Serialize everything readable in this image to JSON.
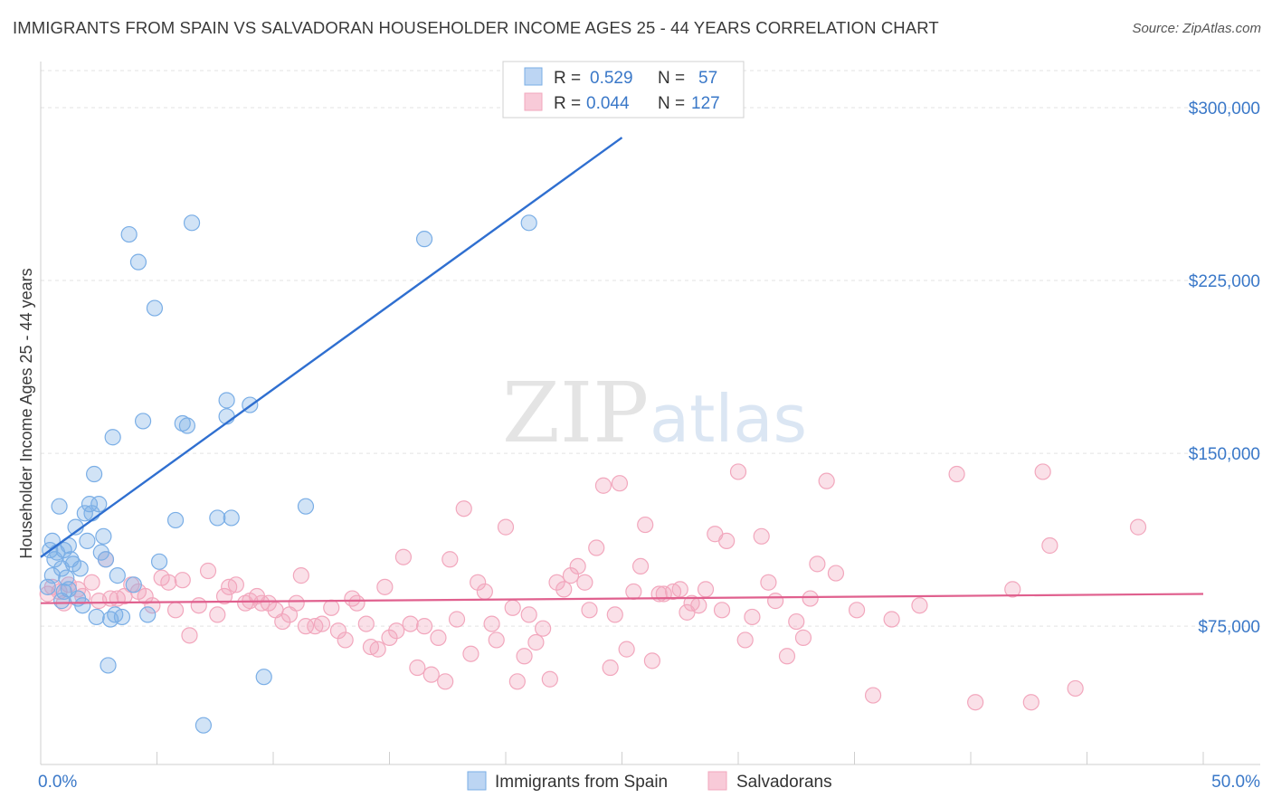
{
  "title": "IMMIGRANTS FROM SPAIN VS SALVADORAN HOUSEHOLDER INCOME AGES 25 - 44 YEARS CORRELATION CHART",
  "source": "Source: ZipAtlas.com",
  "watermark": {
    "zip": "ZIP",
    "atlas": "atlas"
  },
  "chart_data": {
    "type": "scatter",
    "ylabel": "Householder Income Ages 25 - 44 years",
    "xlim": [
      0,
      50
    ],
    "ylim": [
      15000,
      320000
    ],
    "x_tick_labels": {
      "min": "0.0%",
      "max": "50.0%"
    },
    "y_ticks": [
      {
        "value": 75000,
        "label": "$75,000"
      },
      {
        "value": 150000,
        "label": "$150,000"
      },
      {
        "value": 225000,
        "label": "$225,000"
      },
      {
        "value": 300000,
        "label": "$300,000"
      }
    ],
    "grid": true,
    "legend_position": "top-center",
    "series": [
      {
        "name": "Immigrants from Spain",
        "color": "#7aaee6",
        "line_color": "#2f6fd0",
        "R": "0.529",
        "N": "57",
        "trend": [
          [
            0.0,
            105000
          ],
          [
            25.0,
            287000
          ]
        ],
        "points": [
          [
            0.3,
            92000
          ],
          [
            0.4,
            108000
          ],
          [
            0.5,
            112000
          ],
          [
            0.6,
            104000
          ],
          [
            0.7,
            107000
          ],
          [
            0.8,
            127000
          ],
          [
            0.9,
            100000
          ],
          [
            1.0,
            90000
          ],
          [
            1.1,
            96000
          ],
          [
            1.2,
            110000
          ],
          [
            1.3,
            104000
          ],
          [
            1.4,
            102000
          ],
          [
            1.5,
            118000
          ],
          [
            1.6,
            87000
          ],
          [
            1.7,
            100000
          ],
          [
            1.8,
            84000
          ],
          [
            1.9,
            124000
          ],
          [
            2.0,
            112000
          ],
          [
            2.1,
            128000
          ],
          [
            2.2,
            124000
          ],
          [
            2.3,
            141000
          ],
          [
            2.4,
            79000
          ],
          [
            2.5,
            128000
          ],
          [
            2.7,
            114000
          ],
          [
            2.8,
            104000
          ],
          [
            3.0,
            78000
          ],
          [
            3.1,
            157000
          ],
          [
            3.2,
            80000
          ],
          [
            3.3,
            97000
          ],
          [
            3.5,
            79000
          ],
          [
            2.9,
            58000
          ],
          [
            4.0,
            93000
          ],
          [
            4.2,
            233000
          ],
          [
            4.4,
            164000
          ],
          [
            4.6,
            80000
          ],
          [
            4.9,
            213000
          ],
          [
            5.1,
            103000
          ],
          [
            3.8,
            245000
          ],
          [
            5.8,
            121000
          ],
          [
            6.1,
            163000
          ],
          [
            6.3,
            162000
          ],
          [
            6.5,
            250000
          ],
          [
            7.0,
            32000
          ],
          [
            7.6,
            122000
          ],
          [
            8.0,
            166000
          ],
          [
            8.0,
            173000
          ],
          [
            8.2,
            122000
          ],
          [
            9.0,
            171000
          ],
          [
            9.6,
            53000
          ],
          [
            1.2,
            91000
          ],
          [
            0.9,
            86000
          ],
          [
            11.4,
            127000
          ],
          [
            16.5,
            243000
          ],
          [
            21.0,
            250000
          ],
          [
            0.5,
            97000
          ],
          [
            1.0,
            108000
          ],
          [
            2.6,
            107000
          ]
        ]
      },
      {
        "name": "Salvadorans",
        "color": "#f2a7bd",
        "line_color": "#e0608e",
        "R": "0.044",
        "N": "127",
        "trend": [
          [
            0.0,
            85000
          ],
          [
            50.0,
            89000
          ]
        ],
        "points": [
          [
            0.3,
            89000
          ],
          [
            0.5,
            92000
          ],
          [
            0.8,
            90000
          ],
          [
            1.0,
            85000
          ],
          [
            1.2,
            93000
          ],
          [
            1.6,
            91000
          ],
          [
            1.8,
            88000
          ],
          [
            2.2,
            94000
          ],
          [
            2.5,
            86000
          ],
          [
            2.8,
            104000
          ],
          [
            3.0,
            87000
          ],
          [
            3.3,
            87000
          ],
          [
            3.6,
            88000
          ],
          [
            3.9,
            93000
          ],
          [
            4.2,
            90000
          ],
          [
            4.5,
            88000
          ],
          [
            4.8,
            84000
          ],
          [
            5.2,
            96000
          ],
          [
            5.5,
            94000
          ],
          [
            5.8,
            82000
          ],
          [
            6.1,
            95000
          ],
          [
            6.4,
            71000
          ],
          [
            6.8,
            84000
          ],
          [
            7.2,
            99000
          ],
          [
            7.6,
            80000
          ],
          [
            7.9,
            88000
          ],
          [
            8.1,
            92000
          ],
          [
            8.4,
            93000
          ],
          [
            8.8,
            85000
          ],
          [
            9.0,
            86000
          ],
          [
            9.3,
            88000
          ],
          [
            9.5,
            85000
          ],
          [
            9.8,
            85000
          ],
          [
            10.1,
            82000
          ],
          [
            10.4,
            77000
          ],
          [
            10.7,
            80000
          ],
          [
            11.0,
            85000
          ],
          [
            11.2,
            97000
          ],
          [
            11.4,
            75000
          ],
          [
            11.8,
            75000
          ],
          [
            12.1,
            76000
          ],
          [
            12.5,
            83000
          ],
          [
            12.8,
            73000
          ],
          [
            13.1,
            69000
          ],
          [
            13.4,
            87000
          ],
          [
            13.6,
            85000
          ],
          [
            14.0,
            76000
          ],
          [
            14.2,
            66000
          ],
          [
            14.5,
            65000
          ],
          [
            14.8,
            92000
          ],
          [
            15.0,
            70000
          ],
          [
            15.3,
            73000
          ],
          [
            15.6,
            105000
          ],
          [
            15.9,
            76000
          ],
          [
            16.2,
            57000
          ],
          [
            16.5,
            75000
          ],
          [
            16.8,
            54000
          ],
          [
            17.1,
            70000
          ],
          [
            17.4,
            51000
          ],
          [
            17.6,
            104000
          ],
          [
            17.9,
            78000
          ],
          [
            18.2,
            126000
          ],
          [
            18.5,
            63000
          ],
          [
            18.8,
            94000
          ],
          [
            19.1,
            90000
          ],
          [
            19.4,
            76000
          ],
          [
            19.6,
            69000
          ],
          [
            20.0,
            118000
          ],
          [
            20.3,
            83000
          ],
          [
            20.5,
            51000
          ],
          [
            20.8,
            62000
          ],
          [
            21.0,
            80000
          ],
          [
            21.3,
            68000
          ],
          [
            21.6,
            74000
          ],
          [
            21.9,
            52000
          ],
          [
            22.2,
            94000
          ],
          [
            22.5,
            91000
          ],
          [
            22.8,
            97000
          ],
          [
            23.1,
            101000
          ],
          [
            23.4,
            94000
          ],
          [
            23.6,
            82000
          ],
          [
            23.9,
            109000
          ],
          [
            24.2,
            136000
          ],
          [
            24.5,
            57000
          ],
          [
            24.7,
            80000
          ],
          [
            24.9,
            137000
          ],
          [
            25.2,
            65000
          ],
          [
            25.5,
            90000
          ],
          [
            25.8,
            101000
          ],
          [
            26.0,
            119000
          ],
          [
            26.3,
            60000
          ],
          [
            26.6,
            89000
          ],
          [
            26.8,
            89000
          ],
          [
            27.2,
            90000
          ],
          [
            27.5,
            91000
          ],
          [
            27.8,
            81000
          ],
          [
            28.0,
            85000
          ],
          [
            28.3,
            84000
          ],
          [
            28.6,
            91000
          ],
          [
            29.0,
            115000
          ],
          [
            29.3,
            82000
          ],
          [
            29.5,
            112000
          ],
          [
            30.0,
            142000
          ],
          [
            30.3,
            69000
          ],
          [
            30.6,
            79000
          ],
          [
            31.0,
            114000
          ],
          [
            31.3,
            94000
          ],
          [
            31.6,
            86000
          ],
          [
            32.1,
            62000
          ],
          [
            32.5,
            77000
          ],
          [
            32.8,
            70000
          ],
          [
            33.1,
            87000
          ],
          [
            33.4,
            102000
          ],
          [
            33.8,
            138000
          ],
          [
            34.2,
            98000
          ],
          [
            35.1,
            82000
          ],
          [
            35.8,
            45000
          ],
          [
            36.6,
            78000
          ],
          [
            37.8,
            84000
          ],
          [
            39.4,
            141000
          ],
          [
            40.2,
            42000
          ],
          [
            41.8,
            91000
          ],
          [
            42.6,
            42000
          ],
          [
            43.1,
            142000
          ],
          [
            43.4,
            110000
          ],
          [
            44.5,
            48000
          ],
          [
            47.2,
            118000
          ]
        ]
      }
    ]
  },
  "legend": {
    "r_label": "R =",
    "n_label": "N ="
  }
}
